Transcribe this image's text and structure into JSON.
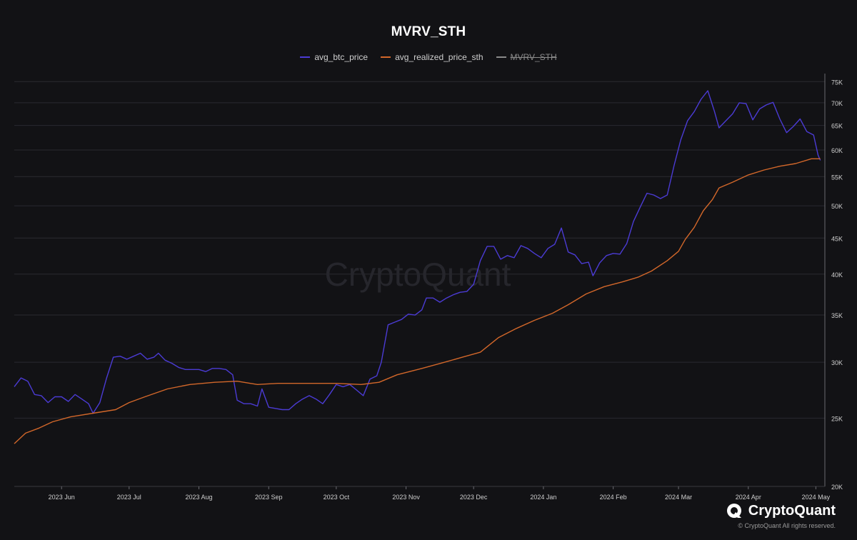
{
  "chart_data": {
    "type": "line",
    "title": "MVRV_STH",
    "yscale": "log",
    "ylim": [
      20000,
      77000
    ],
    "y_ticks": [
      20000,
      25000,
      30000,
      35000,
      40000,
      45000,
      50000,
      55000,
      60000,
      65000,
      70000,
      75000
    ],
    "y_tick_labels": [
      "20K",
      "25K",
      "30K",
      "35K",
      "40K",
      "45K",
      "50K",
      "55K",
      "60K",
      "65K",
      "70K",
      "75K"
    ],
    "xlim": [
      "2023-05-11",
      "2024-05-05"
    ],
    "x_ticks": [
      "2023-06-01",
      "2023-07-01",
      "2023-08-01",
      "2023-09-01",
      "2023-10-01",
      "2023-11-01",
      "2023-12-01",
      "2024-01-01",
      "2024-02-01",
      "2024-03-01",
      "2024-04-01",
      "2024-05-01"
    ],
    "x_tick_labels": [
      "2023 Jun",
      "2023 Jul",
      "2023 Aug",
      "2023 Sep",
      "2023 Oct",
      "2023 Nov",
      "2023 Dec",
      "2024 Jan",
      "2024 Feb",
      "2024 Mar",
      "2024 Apr",
      "2024 May"
    ],
    "grid": true,
    "legend": "top-center",
    "series": [
      {
        "name": "avg_btc_price",
        "color": "#4b3bd4",
        "points": [
          [
            "2023-05-11",
            27700
          ],
          [
            "2023-05-14",
            28500
          ],
          [
            "2023-05-17",
            28200
          ],
          [
            "2023-05-20",
            27000
          ],
          [
            "2023-05-23",
            26900
          ],
          [
            "2023-05-26",
            26300
          ],
          [
            "2023-05-29",
            26800
          ],
          [
            "2023-06-01",
            26800
          ],
          [
            "2023-06-04",
            26400
          ],
          [
            "2023-06-07",
            27000
          ],
          [
            "2023-06-10",
            26600
          ],
          [
            "2023-06-13",
            26200
          ],
          [
            "2023-06-15",
            25400
          ],
          [
            "2023-06-18",
            26300
          ],
          [
            "2023-06-21",
            28500
          ],
          [
            "2023-06-24",
            30500
          ],
          [
            "2023-06-27",
            30600
          ],
          [
            "2023-06-30",
            30300
          ],
          [
            "2023-07-03",
            30600
          ],
          [
            "2023-07-06",
            30900
          ],
          [
            "2023-07-09",
            30300
          ],
          [
            "2023-07-12",
            30500
          ],
          [
            "2023-07-14",
            30900
          ],
          [
            "2023-07-17",
            30200
          ],
          [
            "2023-07-20",
            29900
          ],
          [
            "2023-07-23",
            29500
          ],
          [
            "2023-07-26",
            29300
          ],
          [
            "2023-07-29",
            29300
          ],
          [
            "2023-08-01",
            29300
          ],
          [
            "2023-08-04",
            29100
          ],
          [
            "2023-08-07",
            29400
          ],
          [
            "2023-08-10",
            29400
          ],
          [
            "2023-08-13",
            29300
          ],
          [
            "2023-08-16",
            28800
          ],
          [
            "2023-08-18",
            26500
          ],
          [
            "2023-08-21",
            26200
          ],
          [
            "2023-08-24",
            26200
          ],
          [
            "2023-08-27",
            26000
          ],
          [
            "2023-08-29",
            27500
          ],
          [
            "2023-09-01",
            25900
          ],
          [
            "2023-09-04",
            25800
          ],
          [
            "2023-09-07",
            25700
          ],
          [
            "2023-09-10",
            25700
          ],
          [
            "2023-09-13",
            26200
          ],
          [
            "2023-09-16",
            26600
          ],
          [
            "2023-09-19",
            26900
          ],
          [
            "2023-09-22",
            26600
          ],
          [
            "2023-09-25",
            26200
          ],
          [
            "2023-09-28",
            27000
          ],
          [
            "2023-10-01",
            27900
          ],
          [
            "2023-10-04",
            27700
          ],
          [
            "2023-10-07",
            27900
          ],
          [
            "2023-10-10",
            27400
          ],
          [
            "2023-10-13",
            26900
          ],
          [
            "2023-10-16",
            28400
          ],
          [
            "2023-10-19",
            28700
          ],
          [
            "2023-10-21",
            30000
          ],
          [
            "2023-10-24",
            33900
          ],
          [
            "2023-10-27",
            34200
          ],
          [
            "2023-10-30",
            34500
          ],
          [
            "2023-11-02",
            35100
          ],
          [
            "2023-11-05",
            35000
          ],
          [
            "2023-11-08",
            35600
          ],
          [
            "2023-11-10",
            37000
          ],
          [
            "2023-11-13",
            37000
          ],
          [
            "2023-11-16",
            36500
          ],
          [
            "2023-11-19",
            37000
          ],
          [
            "2023-11-22",
            37400
          ],
          [
            "2023-11-25",
            37700
          ],
          [
            "2023-11-28",
            37800
          ],
          [
            "2023-12-01",
            38700
          ],
          [
            "2023-12-04",
            41800
          ],
          [
            "2023-12-07",
            43800
          ],
          [
            "2023-12-10",
            43800
          ],
          [
            "2023-12-13",
            42000
          ],
          [
            "2023-12-16",
            42500
          ],
          [
            "2023-12-19",
            42200
          ],
          [
            "2023-12-22",
            43900
          ],
          [
            "2023-12-25",
            43500
          ],
          [
            "2023-12-28",
            42800
          ],
          [
            "2023-12-31",
            42200
          ],
          [
            "2024-01-03",
            43500
          ],
          [
            "2024-01-06",
            44100
          ],
          [
            "2024-01-09",
            46500
          ],
          [
            "2024-01-12",
            43000
          ],
          [
            "2024-01-15",
            42600
          ],
          [
            "2024-01-18",
            41400
          ],
          [
            "2024-01-21",
            41600
          ],
          [
            "2024-01-23",
            39800
          ],
          [
            "2024-01-26",
            41500
          ],
          [
            "2024-01-29",
            42500
          ],
          [
            "2024-02-01",
            42800
          ],
          [
            "2024-02-04",
            42700
          ],
          [
            "2024-02-07",
            44200
          ],
          [
            "2024-02-10",
            47500
          ],
          [
            "2024-02-13",
            49800
          ],
          [
            "2024-02-16",
            52100
          ],
          [
            "2024-02-19",
            51800
          ],
          [
            "2024-02-22",
            51200
          ],
          [
            "2024-02-25",
            51800
          ],
          [
            "2024-02-28",
            57000
          ],
          [
            "2024-03-02",
            62000
          ],
          [
            "2024-03-05",
            66000
          ],
          [
            "2024-03-08",
            68000
          ],
          [
            "2024-03-11",
            70800
          ],
          [
            "2024-03-14",
            72800
          ],
          [
            "2024-03-17",
            68000
          ],
          [
            "2024-03-19",
            64500
          ],
          [
            "2024-03-22",
            66000
          ],
          [
            "2024-03-25",
            67500
          ],
          [
            "2024-03-28",
            70000
          ],
          [
            "2024-03-31",
            69800
          ],
          [
            "2024-04-03",
            66200
          ],
          [
            "2024-04-06",
            68600
          ],
          [
            "2024-04-09",
            69500
          ],
          [
            "2024-04-12",
            70100
          ],
          [
            "2024-04-15",
            66400
          ],
          [
            "2024-04-18",
            63500
          ],
          [
            "2024-04-21",
            64800
          ],
          [
            "2024-04-24",
            66400
          ],
          [
            "2024-04-27",
            63700
          ],
          [
            "2024-04-30",
            63000
          ],
          [
            "2024-05-02",
            59000
          ],
          [
            "2024-05-03",
            58000
          ]
        ]
      },
      {
        "name": "avg_realized_price_sth",
        "color": "#d2672a",
        "points": [
          [
            "2023-05-11",
            23000
          ],
          [
            "2023-05-16",
            23800
          ],
          [
            "2023-05-22",
            24200
          ],
          [
            "2023-05-28",
            24700
          ],
          [
            "2023-06-05",
            25100
          ],
          [
            "2023-06-15",
            25400
          ],
          [
            "2023-06-25",
            25700
          ],
          [
            "2023-07-01",
            26300
          ],
          [
            "2023-07-08",
            26800
          ],
          [
            "2023-07-18",
            27500
          ],
          [
            "2023-07-28",
            27900
          ],
          [
            "2023-08-08",
            28100
          ],
          [
            "2023-08-18",
            28200
          ],
          [
            "2023-08-27",
            27900
          ],
          [
            "2023-09-05",
            28000
          ],
          [
            "2023-09-18",
            28000
          ],
          [
            "2023-10-01",
            28000
          ],
          [
            "2023-10-12",
            27900
          ],
          [
            "2023-10-20",
            28100
          ],
          [
            "2023-10-28",
            28800
          ],
          [
            "2023-11-08",
            29400
          ],
          [
            "2023-11-18",
            30000
          ],
          [
            "2023-11-26",
            30500
          ],
          [
            "2023-12-04",
            31000
          ],
          [
            "2023-12-12",
            32500
          ],
          [
            "2023-12-20",
            33500
          ],
          [
            "2023-12-28",
            34400
          ],
          [
            "2024-01-05",
            35200
          ],
          [
            "2024-01-12",
            36200
          ],
          [
            "2024-01-20",
            37500
          ],
          [
            "2024-01-28",
            38400
          ],
          [
            "2024-02-05",
            39000
          ],
          [
            "2024-02-12",
            39600
          ],
          [
            "2024-02-18",
            40400
          ],
          [
            "2024-02-25",
            41800
          ],
          [
            "2024-03-01",
            43100
          ],
          [
            "2024-03-04",
            44800
          ],
          [
            "2024-03-08",
            46600
          ],
          [
            "2024-03-12",
            49200
          ],
          [
            "2024-03-16",
            51000
          ],
          [
            "2024-03-19",
            53000
          ],
          [
            "2024-03-25",
            54000
          ],
          [
            "2024-04-01",
            55300
          ],
          [
            "2024-04-08",
            56200
          ],
          [
            "2024-04-15",
            56900
          ],
          [
            "2024-04-22",
            57400
          ],
          [
            "2024-04-29",
            58300
          ],
          [
            "2024-05-03",
            58300
          ]
        ]
      }
    ],
    "hidden_series": [
      {
        "name": "MVRV_STH",
        "color": "#8a8a8a"
      }
    ]
  },
  "watermark": "CryptoQuant",
  "brand": {
    "name": "CryptoQuant",
    "copyright": "© CryptoQuant All rights reserved."
  }
}
